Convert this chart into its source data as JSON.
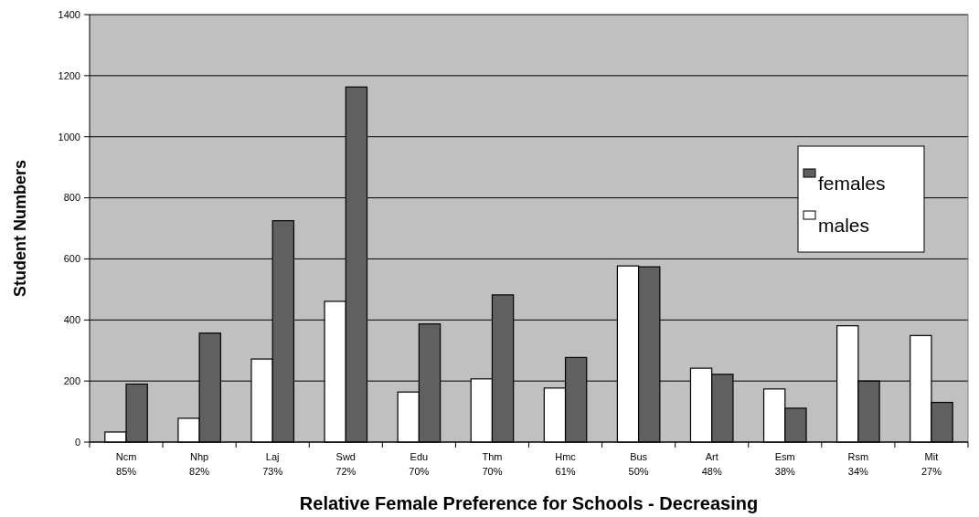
{
  "chart_data": {
    "type": "bar",
    "xlabel": "Relative Female Preference for Schools - Decreasing",
    "ylabel": "Student Numbers",
    "categories": [
      "Ncm\n85%",
      "Nhp\n82%",
      "Laj\n73%",
      "Swd\n72%",
      "Edu\n70%",
      "Thm\n70%",
      "Hmc\n61%",
      "Bus\n50%",
      "Art\n48%",
      "Esm\n38%",
      "Rsm\n34%",
      "Mit\n27%"
    ],
    "series": [
      {
        "name": "males",
        "color": "#ffffff",
        "values": [
          33,
          78,
          272,
          461,
          164,
          207,
          177,
          577,
          242,
          174,
          381,
          349
        ]
      },
      {
        "name": "females",
        "color": "#606060",
        "values": [
          190,
          357,
          725,
          1163,
          387,
          482,
          277,
          574,
          222,
          111,
          200,
          130
        ]
      }
    ],
    "ylim": [
      0,
      1400
    ],
    "yticks": [
      0,
      200,
      400,
      600,
      800,
      1000,
      1200,
      1400
    ],
    "grid": "y",
    "legend": "right"
  }
}
